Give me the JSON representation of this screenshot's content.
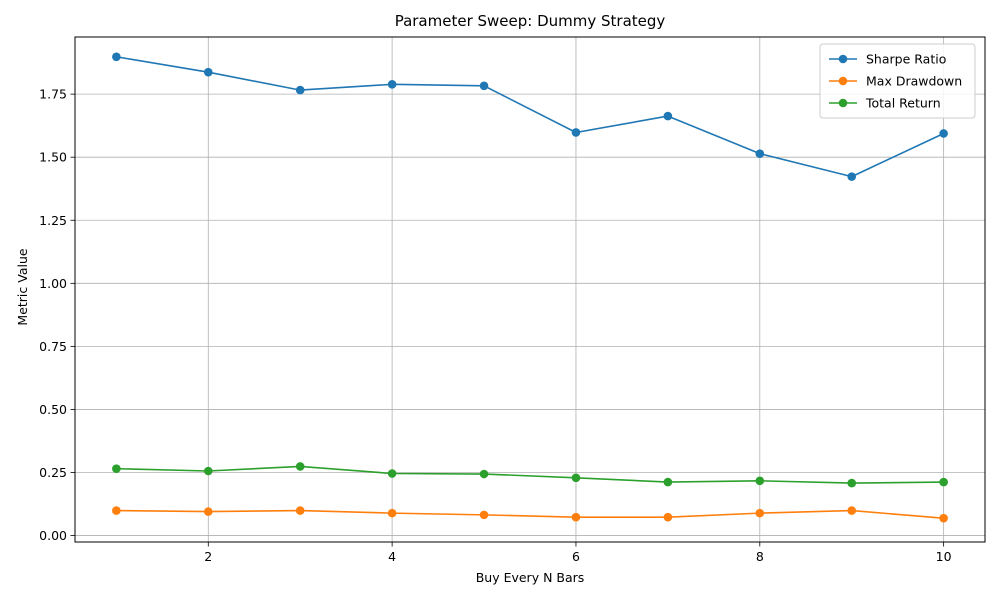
{
  "chart_data": {
    "type": "line",
    "title": "Parameter Sweep: Dummy Strategy",
    "xlabel": "Buy Every N Bars",
    "ylabel": "Metric Value",
    "x": [
      1,
      2,
      3,
      4,
      5,
      6,
      7,
      8,
      9,
      10
    ],
    "xlim": [
      0.55,
      10.45
    ],
    "ylim": [
      -0.0255,
      1.9765
    ],
    "xticks": [
      2,
      4,
      6,
      8,
      10
    ],
    "xtick_labels": [
      "2",
      "4",
      "6",
      "8",
      "10"
    ],
    "yticks": [
      0.0,
      0.25,
      0.5,
      0.75,
      1.0,
      1.25,
      1.5,
      1.75
    ],
    "ytick_labels": [
      "0.00",
      "0.25",
      "0.50",
      "0.75",
      "1.00",
      "1.25",
      "1.50",
      "1.75"
    ],
    "grid": true,
    "legend_position": "top-right",
    "series": [
      {
        "name": "Sharpe Ratio",
        "color": "#1f77b4",
        "marker": "circle",
        "values": [
          1.898,
          1.837,
          1.766,
          1.789,
          1.783,
          1.598,
          1.663,
          1.514,
          1.423,
          1.594
        ]
      },
      {
        "name": "Max Drawdown",
        "color": "#ff7f0e",
        "marker": "circle",
        "values": [
          0.099,
          0.095,
          0.099,
          0.089,
          0.082,
          0.073,
          0.073,
          0.089,
          0.099,
          0.069
        ]
      },
      {
        "name": "Total Return",
        "color": "#2ca02c",
        "marker": "circle",
        "values": [
          0.265,
          0.256,
          0.274,
          0.246,
          0.244,
          0.229,
          0.212,
          0.217,
          0.208,
          0.212
        ]
      }
    ]
  }
}
